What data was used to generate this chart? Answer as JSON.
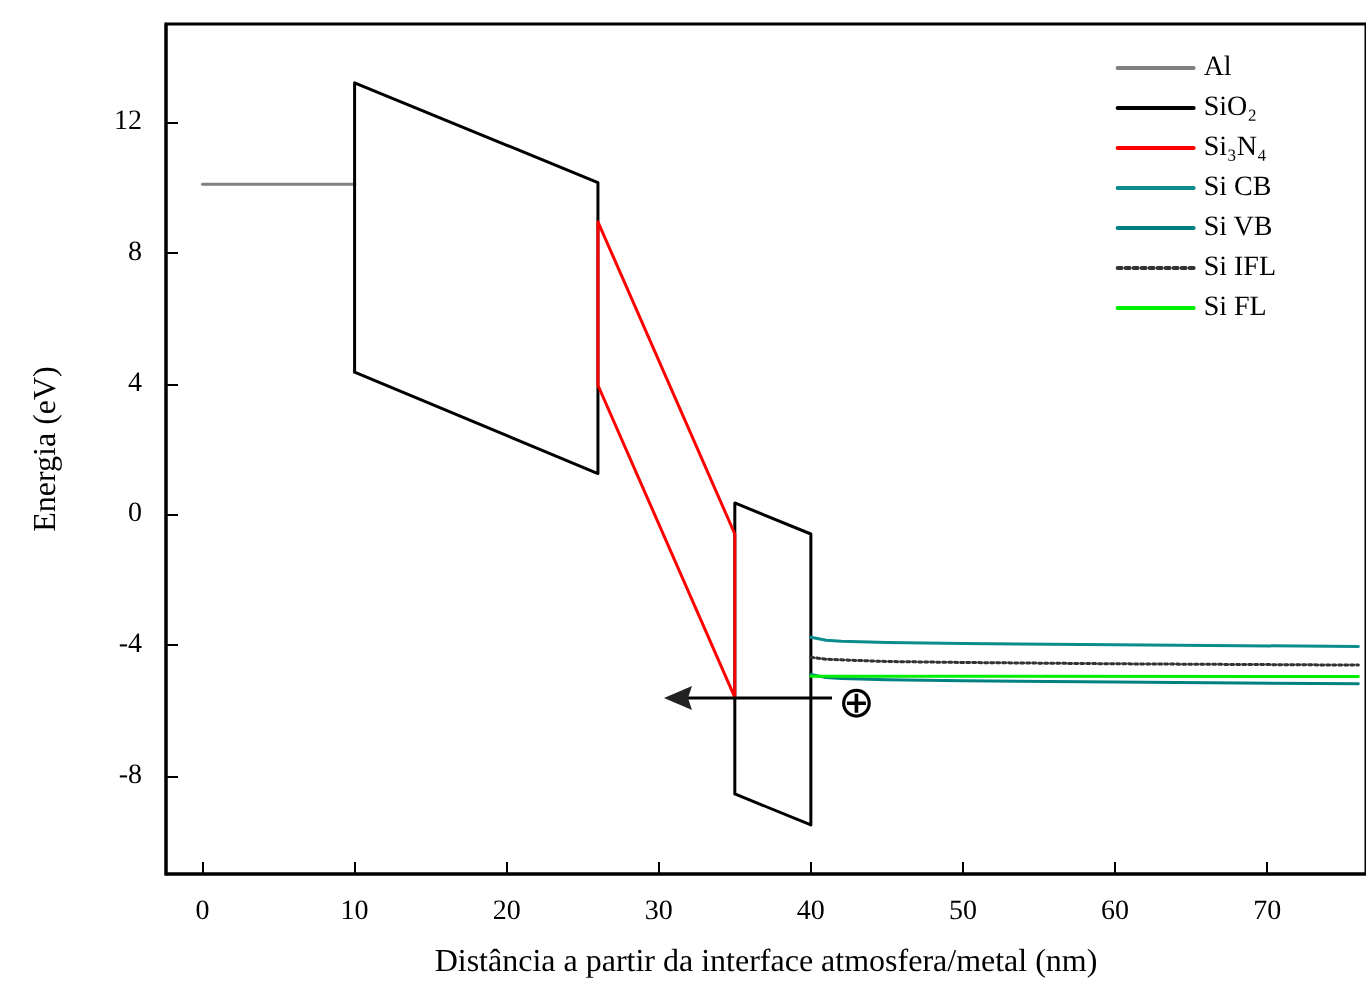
{
  "chart_data": {
    "type": "line",
    "xlabel": "Distância a partir da interface atmosfera/metal (nm)",
    "ylabel": "Energia (eV)",
    "xlim": [
      -2.4,
      76.5
    ],
    "xticks": [
      0,
      10,
      20,
      30,
      40,
      50,
      60,
      70
    ],
    "ylim": [
      -11,
      15
    ],
    "yticks": [
      -8,
      -4,
      0,
      4,
      8,
      12
    ],
    "grid": false,
    "legend": "top right",
    "marker": "none",
    "series": [
      {
        "name": "Al",
        "color": "#808080",
        "x": [
          0,
          10
        ],
        "values": [
          10.1,
          10.1
        ]
      },
      {
        "name": "SiO₂",
        "color": "#000000",
        "x": [
          10,
          10,
          26,
          26,
          null,
          10,
          26,
          null,
          35,
          35,
          40,
          40,
          null,
          35,
          40
        ],
        "values": [
          4.35,
          13.2,
          10.15,
          1.25,
          null,
          4.35,
          1.25,
          null,
          -8.55,
          0.35,
          -0.6,
          -9.5,
          null,
          -8.55,
          -9.5
        ]
      },
      {
        "name": "Si₃N₄",
        "color": "#ff0000",
        "x": [
          26,
          26,
          35,
          35,
          null,
          26,
          35
        ],
        "values": [
          3.95,
          8.95,
          -0.6,
          -5.6,
          null,
          3.95,
          -5.6
        ]
      },
      {
        "name": "Si CB",
        "color": "#0a8c8c",
        "x": [
          40,
          41,
          42,
          45,
          50,
          60,
          76
        ],
        "values": [
          -3.76,
          -3.85,
          -3.88,
          -3.92,
          -3.95,
          -3.99,
          -4.04
        ]
      },
      {
        "name": "Si VB",
        "color": "#008080",
        "x": [
          40,
          41,
          42,
          45,
          50,
          60,
          76
        ],
        "values": [
          -4.9,
          -4.99,
          -5.02,
          -5.06,
          -5.09,
          -5.13,
          -5.18
        ]
      },
      {
        "name": "Si IFL",
        "color": "#333333",
        "line_style": "dotted",
        "x": [
          40,
          41,
          42,
          45,
          50,
          60,
          76
        ],
        "values": [
          -4.37,
          -4.43,
          -4.45,
          -4.5,
          -4.53,
          -4.57,
          -4.61
        ]
      },
      {
        "name": "Si FL",
        "color": "#00ee00",
        "x": [
          40,
          76
        ],
        "values": [
          -4.95,
          -4.96
        ]
      }
    ],
    "annotations": [
      "⊕"
    ]
  }
}
